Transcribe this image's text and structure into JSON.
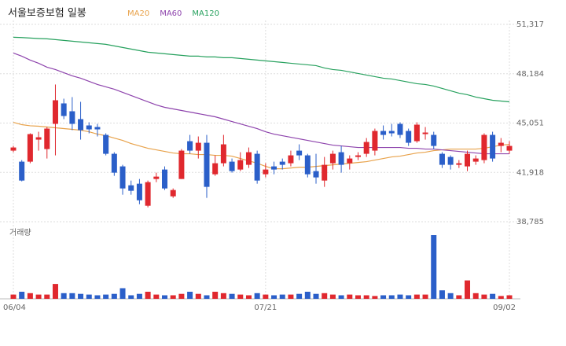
{
  "chart_data": {
    "type": "candlestick",
    "title": "서울보증보험 일봉",
    "categories": [
      "06/04",
      null,
      null,
      null,
      null,
      null,
      null,
      null,
      null,
      null,
      null,
      null,
      null,
      null,
      null,
      null,
      null,
      null,
      null,
      null,
      null,
      null,
      null,
      null,
      null,
      null,
      null,
      null,
      null,
      null,
      "07/21",
      null,
      null,
      null,
      null,
      null,
      null,
      null,
      null,
      null,
      null,
      null,
      null,
      null,
      null,
      null,
      null,
      null,
      null,
      null,
      null,
      null,
      null,
      null,
      null,
      null,
      null,
      null,
      null,
      "09/02"
    ],
    "open": [
      43300,
      42600,
      42600,
      44000,
      43400,
      45000,
      46300,
      45800,
      45300,
      44900,
      44800,
      44300,
      43100,
      42300,
      41100,
      41200,
      39800,
      41500,
      42100,
      40400,
      41500,
      43900,
      43300,
      43800,
      41800,
      42500,
      42600,
      42100,
      42400,
      43100,
      41800,
      42300,
      42600,
      42500,
      43300,
      43000,
      42000,
      41400,
      42500,
      43200,
      42500,
      42900,
      43100,
      43300,
      44550,
      44550,
      45000,
      44550,
      43900,
      44350,
      44300,
      43100,
      42900,
      42400,
      42300,
      42600,
      42700,
      44300,
      43600,
      43300
    ],
    "close": [
      43500,
      41400,
      44350,
      44150,
      44700,
      46500,
      45500,
      45000,
      44600,
      44650,
      44650,
      43100,
      41900,
      40900,
      40750,
      40150,
      41300,
      41650,
      40900,
      40800,
      43300,
      43300,
      43800,
      41000,
      42500,
      43700,
      42000,
      42700,
      43200,
      41400,
      42100,
      42100,
      42400,
      43000,
      43000,
      41800,
      41600,
      42400,
      43100,
      42400,
      42800,
      43000,
      43850,
      44550,
      44300,
      44400,
      44300,
      43800,
      44950,
      44450,
      43600,
      42400,
      42400,
      42500,
      43100,
      42800,
      44300,
      42800,
      43800,
      43600
    ],
    "high": [
      43600,
      42700,
      44400,
      44500,
      44800,
      47500,
      46600,
      46700,
      46400,
      45100,
      45000,
      44400,
      43200,
      42400,
      41400,
      41500,
      41400,
      41900,
      42300,
      40900,
      43400,
      44300,
      44200,
      44300,
      43000,
      44300,
      42800,
      43200,
      43500,
      43300,
      42500,
      42600,
      42800,
      43300,
      43700,
      43100,
      43100,
      42900,
      43300,
      43600,
      43000,
      43200,
      44100,
      44700,
      44900,
      45000,
      45100,
      44700,
      45100,
      44800,
      44500,
      43200,
      43000,
      42700,
      43300,
      43000,
      44400,
      44500,
      44100,
      43900
    ],
    "low": [
      43200,
      41350,
      42500,
      43300,
      42800,
      43000,
      45300,
      44600,
      44000,
      44400,
      44200,
      43000,
      41700,
      40500,
      40500,
      39900,
      39700,
      41300,
      40800,
      40300,
      41500,
      43100,
      42800,
      40300,
      41700,
      42300,
      41900,
      42000,
      42200,
      41200,
      41600,
      41800,
      42100,
      42300,
      42700,
      41600,
      41200,
      41000,
      42100,
      41900,
      42100,
      42700,
      42900,
      43000,
      44000,
      44200,
      44100,
      43600,
      43800,
      44000,
      43400,
      42200,
      42100,
      42200,
      42000,
      42400,
      42500,
      42600,
      43200,
      43100
    ],
    "up_color": "#e0282e",
    "down_color": "#2b5fc9",
    "series": [
      {
        "name": "MA20",
        "color": "#e8a24a",
        "values": [
          45100,
          44950,
          44880,
          44850,
          44800,
          44750,
          44700,
          44650,
          44600,
          44500,
          44350,
          44250,
          44100,
          43950,
          43750,
          43600,
          43450,
          43350,
          43250,
          43150,
          43100,
          43100,
          43050,
          43050,
          43000,
          43000,
          42950,
          42800,
          42650,
          42500,
          42300,
          42150,
          42150,
          42200,
          42250,
          42250,
          42300,
          42350,
          42400,
          42450,
          42500,
          42550,
          42600,
          42700,
          42800,
          42900,
          42950,
          43050,
          43150,
          43200,
          43300,
          43350,
          43400,
          43400,
          43400,
          43400,
          43450,
          43550,
          43650,
          43700
        ]
      },
      {
        "name": "MA60",
        "color": "#8e44ad",
        "values": [
          49500,
          49300,
          49050,
          48850,
          48600,
          48450,
          48250,
          48050,
          47900,
          47700,
          47500,
          47350,
          47200,
          47000,
          46800,
          46600,
          46400,
          46200,
          46050,
          45950,
          45850,
          45750,
          45650,
          45550,
          45450,
          45300,
          45150,
          45000,
          44850,
          44700,
          44500,
          44350,
          44250,
          44150,
          44050,
          43950,
          43850,
          43750,
          43650,
          43600,
          43550,
          43500,
          43500,
          43500,
          43500,
          43500,
          43500,
          43450,
          43450,
          43400,
          43400,
          43350,
          43300,
          43250,
          43200,
          43150,
          43100,
          43100,
          43100,
          43100
        ]
      },
      {
        "name": "MA120",
        "color": "#27a15e",
        "values": [
          50500,
          50480,
          50450,
          50420,
          50400,
          50350,
          50300,
          50250,
          50200,
          50150,
          50100,
          50050,
          49950,
          49850,
          49750,
          49650,
          49550,
          49500,
          49450,
          49400,
          49350,
          49300,
          49300,
          49250,
          49250,
          49200,
          49200,
          49150,
          49100,
          49050,
          49000,
          48950,
          48900,
          48850,
          48800,
          48750,
          48700,
          48550,
          48450,
          48400,
          48300,
          48200,
          48100,
          48000,
          47900,
          47850,
          47750,
          47650,
          47550,
          47500,
          47400,
          47250,
          47100,
          46950,
          46850,
          46700,
          46600,
          46500,
          46450,
          46400
        ]
      }
    ],
    "ylim": [
      38785,
      51317
    ],
    "yticks": [
      {
        "value": 51317,
        "label": "51,317"
      },
      {
        "value": 48184,
        "label": "48,184"
      },
      {
        "value": 45051,
        "label": "45,051"
      },
      {
        "value": 41918,
        "label": "41,918"
      },
      {
        "value": 38785,
        "label": "38,785"
      }
    ],
    "grid": true,
    "volume": {
      "label": "거래량",
      "ylim": [
        0,
        100
      ],
      "values": [
        6,
        10,
        8,
        6,
        6,
        21,
        8,
        8,
        7,
        6,
        5,
        6,
        7,
        15,
        5,
        7,
        10,
        6,
        5,
        5,
        7,
        10,
        7,
        5,
        10,
        8,
        7,
        6,
        5,
        8,
        6,
        5,
        6,
        6,
        7,
        10,
        7,
        8,
        6,
        5,
        6,
        5,
        5,
        4,
        5,
        5,
        6,
        5,
        6,
        6,
        90,
        12,
        8,
        5,
        26,
        8,
        6,
        7,
        4,
        5
      ]
    }
  }
}
